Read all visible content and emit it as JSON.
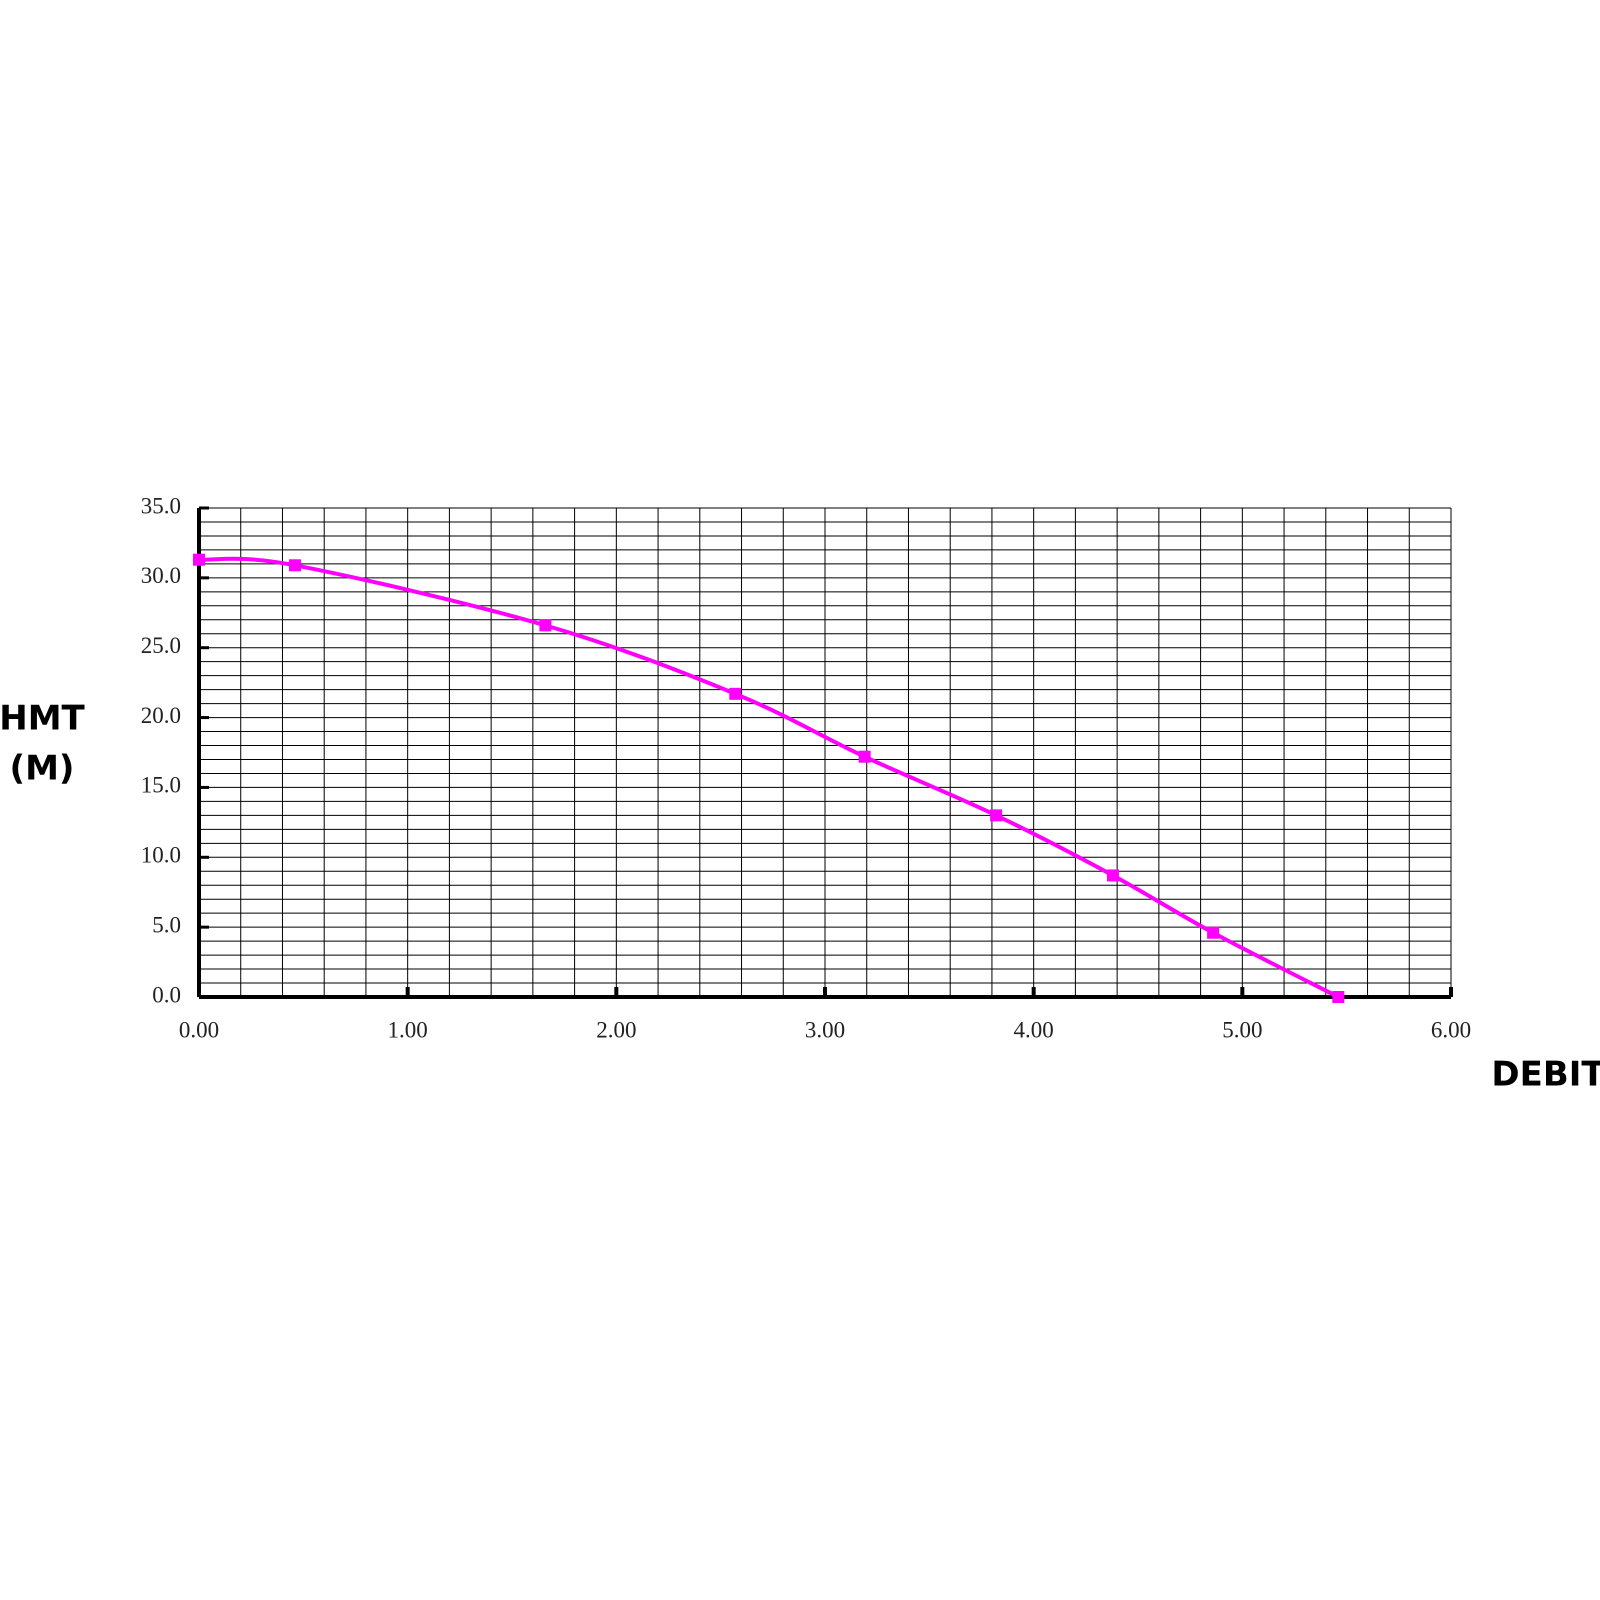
{
  "chart_data": {
    "type": "line",
    "xlabel": "DEBIT",
    "ylabel": [
      "HMT",
      "(M)"
    ],
    "series": [
      {
        "color": "#ff00ff",
        "x": [
          0,
          0.46,
          1.66,
          2.57,
          3.19,
          3.82,
          4.38,
          4.86,
          5.46
        ],
        "values": [
          31.3,
          30.9,
          26.6,
          21.7,
          17.2,
          13.0,
          8.7,
          4.6,
          0
        ]
      }
    ],
    "xlim": [
      0,
      6
    ],
    "ylim": [
      0,
      35
    ],
    "xticks": [
      {
        "value": 0,
        "label": "0.00"
      },
      {
        "value": 1,
        "label": "1.00"
      },
      {
        "value": 2,
        "label": "2.00"
      },
      {
        "value": 3,
        "label": "3.00"
      },
      {
        "value": 4,
        "label": "4.00"
      },
      {
        "value": 5,
        "label": "5.00"
      },
      {
        "value": 6,
        "label": "6.00"
      }
    ],
    "yticks": [
      {
        "value": 0,
        "label": "0.0"
      },
      {
        "value": 5,
        "label": "5.0"
      },
      {
        "value": 10,
        "label": "10.0"
      },
      {
        "value": 15,
        "label": "15.0"
      },
      {
        "value": 20,
        "label": "20.0"
      },
      {
        "value": 25,
        "label": "25.0"
      },
      {
        "value": 30,
        "label": "30.0"
      },
      {
        "value": 35,
        "label": "35.0"
      }
    ],
    "grid": true,
    "minor_grid": {
      "x": 0.2,
      "y": 1
    },
    "markers": "square"
  }
}
